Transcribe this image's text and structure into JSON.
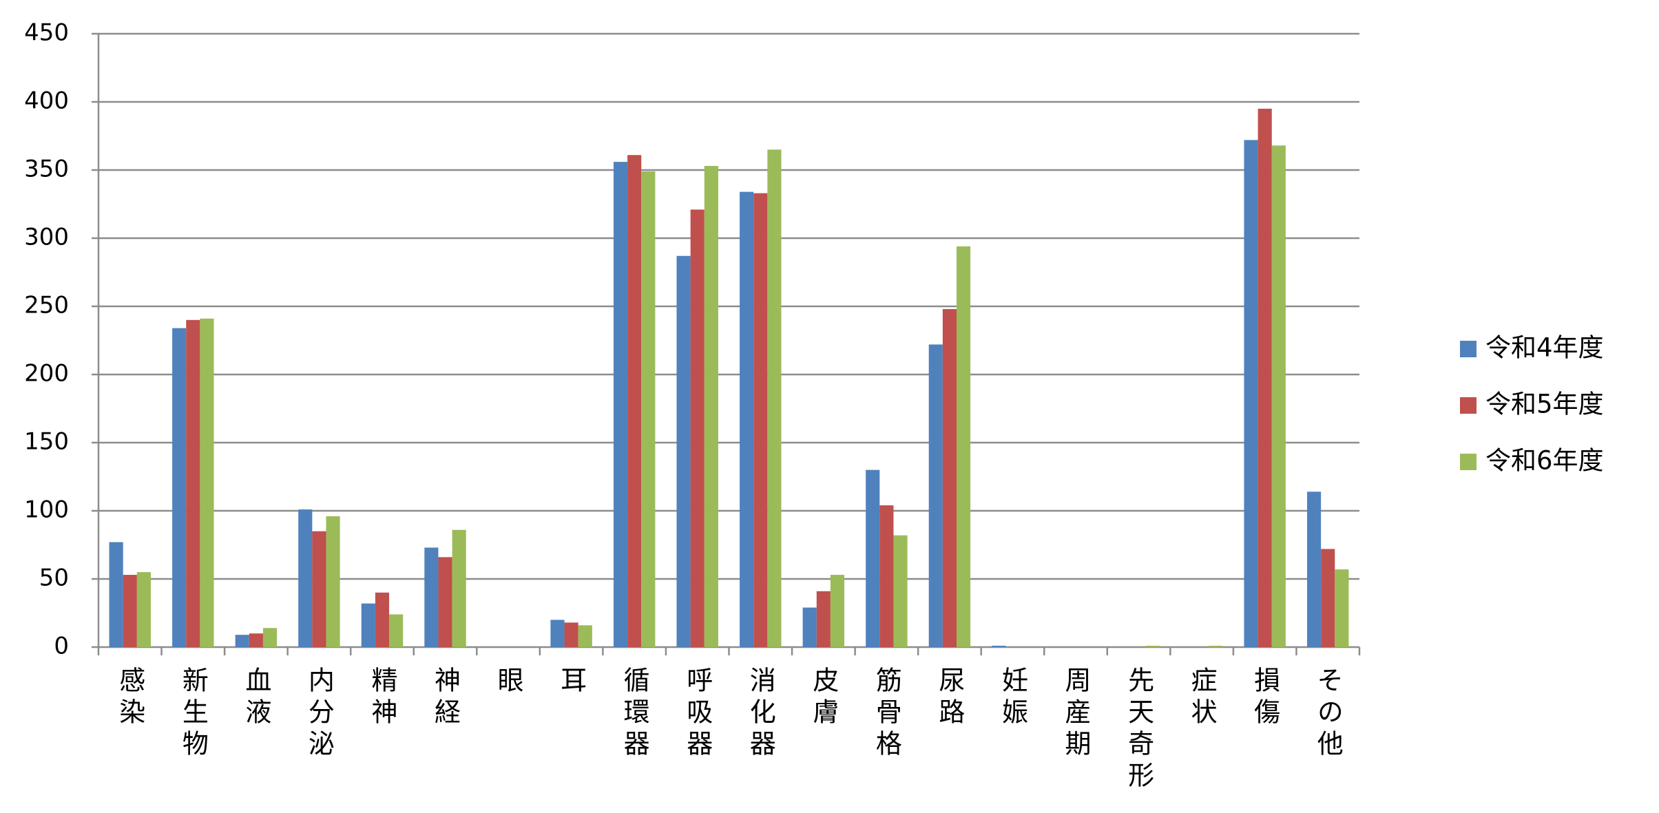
{
  "chart_data": {
    "type": "bar",
    "categories": [
      "感染",
      "新生物",
      "血液",
      "内分泌",
      "精神",
      "神経",
      "眼",
      "耳",
      "循環器",
      "呼吸器",
      "消化器",
      "皮膚",
      "筋骨格",
      "尿路",
      "妊娠",
      "周産期",
      "先天奇形",
      "症状",
      "損傷",
      "その他"
    ],
    "series": [
      {
        "name": "令和4年度",
        "color": "#4f81bd",
        "values": [
          77,
          234,
          9,
          101,
          32,
          73,
          0,
          20,
          356,
          287,
          334,
          29,
          130,
          222,
          1,
          0,
          0,
          0,
          372,
          114
        ]
      },
      {
        "name": "令和5年度",
        "color": "#c0504d",
        "values": [
          53,
          240,
          10,
          85,
          40,
          66,
          0,
          18,
          361,
          321,
          333,
          41,
          104,
          248,
          0,
          0,
          0,
          0,
          395,
          72
        ]
      },
      {
        "name": "令和6年度",
        "color": "#9bbb59",
        "values": [
          55,
          241,
          14,
          96,
          24,
          86,
          0,
          16,
          349,
          353,
          365,
          53,
          82,
          294,
          0,
          0,
          1,
          1,
          368,
          57
        ]
      }
    ],
    "ylim": [
      0,
      450
    ],
    "yticks": [
      0,
      50,
      100,
      150,
      200,
      250,
      300,
      350,
      400,
      450
    ],
    "grid": true,
    "legend": "right"
  }
}
